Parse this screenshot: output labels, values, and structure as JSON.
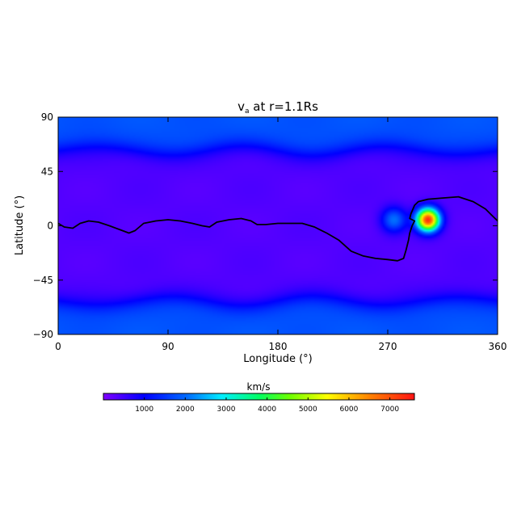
{
  "chart_data": {
    "type": "heatmap",
    "title": {
      "symbol": "v",
      "subscript": "a",
      "rest": " at r=1.1Rs"
    },
    "xlabel": "Longitude (°)",
    "ylabel": "Latitude (°)",
    "xlim": [
      0,
      360
    ],
    "ylim": [
      -90,
      90
    ],
    "xticks": [
      0,
      90,
      180,
      270,
      360
    ],
    "xtick_labels": [
      "0",
      "90",
      "180",
      "270",
      "360"
    ],
    "yticks": [
      -90,
      -45,
      0,
      45,
      90
    ],
    "ytick_labels": [
      "−90",
      "−45",
      "0",
      "45",
      "90"
    ],
    "colorbar": {
      "label": "km/s",
      "range": [
        0,
        7600
      ],
      "ticks": [
        1000,
        2000,
        3000,
        4000,
        5000,
        6000,
        7000
      ],
      "tick_labels": [
        "1000",
        "2000",
        "3000",
        "4000",
        "5000",
        "6000",
        "7000"
      ],
      "colormap": "rainbow"
    },
    "features": [
      {
        "lon": 275,
        "lat": 5,
        "peak": 2100
      },
      {
        "lon": 303,
        "lat": 5,
        "peak": 7400
      }
    ],
    "neutral_line": [
      [
        0,
        2
      ],
      [
        5,
        -1
      ],
      [
        12,
        -2
      ],
      [
        18,
        2
      ],
      [
        25,
        4
      ],
      [
        33,
        3
      ],
      [
        42,
        0
      ],
      [
        50,
        -3
      ],
      [
        58,
        -6
      ],
      [
        63,
        -4
      ],
      [
        70,
        2
      ],
      [
        80,
        4
      ],
      [
        90,
        5
      ],
      [
        100,
        4
      ],
      [
        110,
        2
      ],
      [
        118,
        0
      ],
      [
        124,
        -1
      ],
      [
        130,
        3
      ],
      [
        140,
        5
      ],
      [
        150,
        6
      ],
      [
        158,
        4
      ],
      [
        163,
        1
      ],
      [
        170,
        1
      ],
      [
        180,
        2
      ],
      [
        190,
        2
      ],
      [
        200,
        2
      ],
      [
        210,
        -1
      ],
      [
        220,
        -6
      ],
      [
        230,
        -12
      ],
      [
        240,
        -21
      ],
      [
        250,
        -25
      ],
      [
        260,
        -27
      ],
      [
        270,
        -28
      ],
      [
        278,
        -29
      ],
      [
        283,
        -27
      ],
      [
        285,
        -20
      ],
      [
        287,
        -12
      ],
      [
        288,
        -6
      ],
      [
        290,
        0
      ],
      [
        292,
        4
      ],
      [
        288,
        6
      ],
      [
        289,
        10
      ],
      [
        292,
        17
      ],
      [
        295,
        20
      ],
      [
        303,
        22
      ],
      [
        315,
        23
      ],
      [
        328,
        24
      ],
      [
        340,
        20
      ],
      [
        350,
        14
      ],
      [
        355,
        9
      ],
      [
        360,
        4
      ]
    ]
  }
}
